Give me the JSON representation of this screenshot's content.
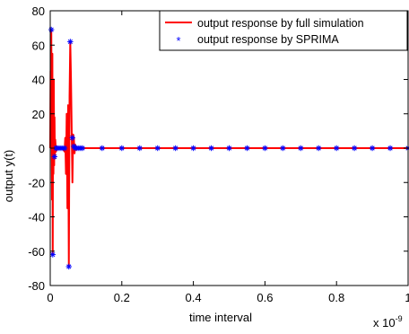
{
  "chart_data": {
    "type": "line",
    "title": "",
    "xlabel": "time interval",
    "ylabel": "output y(t)",
    "x_scale_note": "x 10",
    "x_scale_exponent": "-9",
    "xlim": [
      0,
      1
    ],
    "ylim": [
      -80,
      80
    ],
    "x_ticks": [
      "0",
      "0.2",
      "0.4",
      "0.6",
      "0.8",
      "1"
    ],
    "y_ticks": [
      "80",
      "60",
      "40",
      "20",
      "0",
      "-20",
      "-40",
      "-60",
      "-80"
    ],
    "grid": false,
    "legend_position": "top-right",
    "series": [
      {
        "name": "output response by full simulation",
        "style": "line",
        "color": "#ff0000",
        "x": [
          0,
          0.001,
          0.002,
          0.003,
          0.004,
          0.005,
          0.006,
          0.007,
          0.008,
          0.009,
          0.01,
          0.011,
          0.012,
          0.013,
          0.014,
          0.016,
          0.018,
          0.02,
          0.025,
          0.03,
          0.035,
          0.04,
          0.042,
          0.044,
          0.046,
          0.048,
          0.05,
          0.052,
          0.054,
          0.056,
          0.058,
          0.06,
          0.062,
          0.064,
          0.066,
          0.068,
          0.07,
          0.072,
          0.075,
          0.08,
          0.09,
          1.0
        ],
        "y": [
          0,
          45,
          20,
          69,
          10,
          -30,
          55,
          -62,
          35,
          -15,
          40,
          -10,
          18,
          -6,
          5,
          -2,
          1,
          0,
          0,
          0,
          0,
          -2,
          6,
          -15,
          20,
          -35,
          25,
          -69,
          30,
          62,
          40,
          10,
          -20,
          8,
          6,
          -3,
          2,
          -1,
          0.5,
          0,
          0,
          0
        ]
      },
      {
        "name": "output response by SPRIMA",
        "style": "marker",
        "marker": "*",
        "color": "#0000ff",
        "x": [
          0.003,
          0.007,
          0.012,
          0.016,
          0.02,
          0.025,
          0.03,
          0.035,
          0.04,
          0.052,
          0.056,
          0.062,
          0.066,
          0.07,
          0.075,
          0.08,
          0.085,
          0.09,
          0.145,
          0.2,
          0.25,
          0.3,
          0.35,
          0.4,
          0.45,
          0.5,
          0.55,
          0.6,
          0.65,
          0.7,
          0.75,
          0.8,
          0.85,
          0.9,
          0.95,
          1.0
        ],
        "y": [
          69,
          -62,
          -5,
          0,
          0,
          0,
          0,
          0,
          0,
          -69,
          62,
          6,
          1,
          0,
          0,
          0,
          0,
          0,
          0,
          0,
          0,
          0,
          0,
          0,
          0,
          0,
          0,
          0,
          0,
          0,
          0,
          0,
          0,
          0,
          0,
          0
        ]
      }
    ]
  }
}
